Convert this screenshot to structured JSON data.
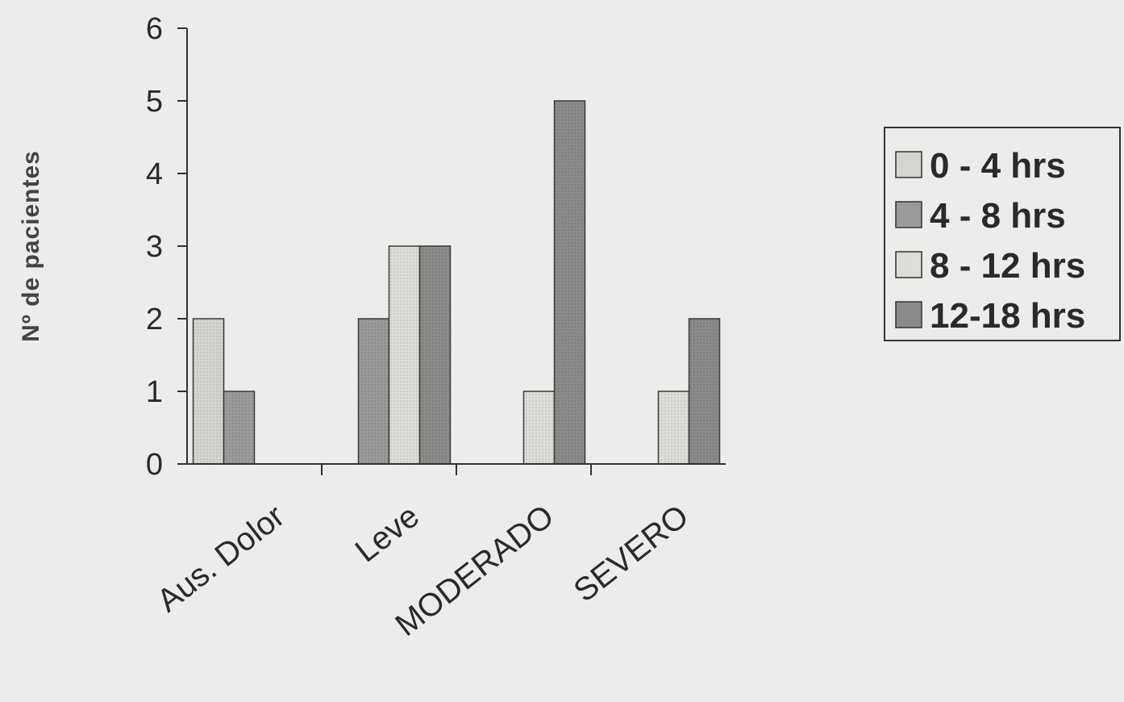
{
  "chart_data": {
    "type": "bar",
    "title": "",
    "xlabel": "",
    "ylabel": "Nº de pacientes",
    "categories": [
      "Aus. Dolor",
      "Leve",
      "MODERADO",
      "SEVERO"
    ],
    "series": [
      {
        "name": "0 - 4 hrs",
        "values": [
          2,
          0,
          0,
          0
        ],
        "color": "#d4d4d0"
      },
      {
        "name": "4 - 8 hrs",
        "values": [
          1,
          2,
          0,
          0
        ],
        "color": "#9a9a98"
      },
      {
        "name": "8 - 12 hrs",
        "values": [
          0,
          3,
          1,
          1
        ],
        "color": "#dedcd8"
      },
      {
        "name": "12-18 hrs",
        "values": [
          0,
          3,
          5,
          2
        ],
        "color": "#8a8a88"
      }
    ],
    "ylim": [
      0,
      6
    ],
    "yticks": [
      "0",
      "1",
      "2",
      "3",
      "4",
      "5",
      "6"
    ],
    "grid": false,
    "legend_position": "right"
  }
}
